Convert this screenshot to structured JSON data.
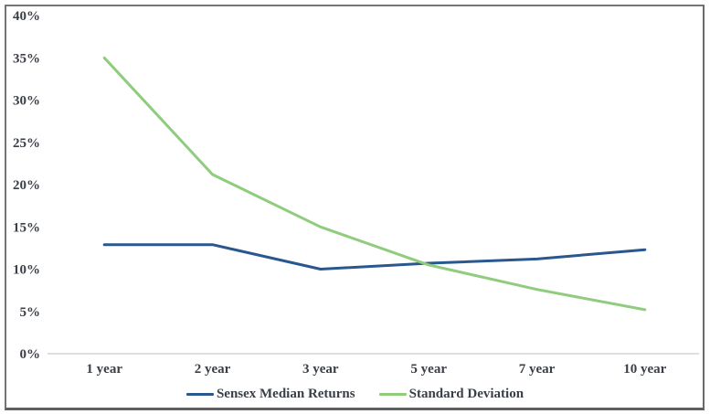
{
  "chart_data": {
    "type": "line",
    "categories": [
      "1 year",
      "2 year",
      "3 year",
      "5 year",
      "7 year",
      "10 year"
    ],
    "series": [
      {
        "name": "Sensex Median Returns",
        "color": "#2a578d",
        "values": [
          12.9,
          12.9,
          10.0,
          10.7,
          11.2,
          12.3
        ]
      },
      {
        "name": "Standard Deviation",
        "color": "#8fcc7d",
        "values": [
          35.0,
          21.2,
          15.0,
          10.5,
          7.6,
          5.2
        ]
      }
    ],
    "title": "",
    "xlabel": "",
    "ylabel": "",
    "ylim": [
      0,
      40
    ],
    "ytick_step": 5,
    "ytick_labels": [
      "0%",
      "5%",
      "10%",
      "15%",
      "20%",
      "25%",
      "30%",
      "35%",
      "40%"
    ],
    "grid": false,
    "legend_position": "bottom",
    "axis_line_color": "#c9c9c9",
    "label_color": "#3a3f47",
    "frame_color": "#757575"
  }
}
